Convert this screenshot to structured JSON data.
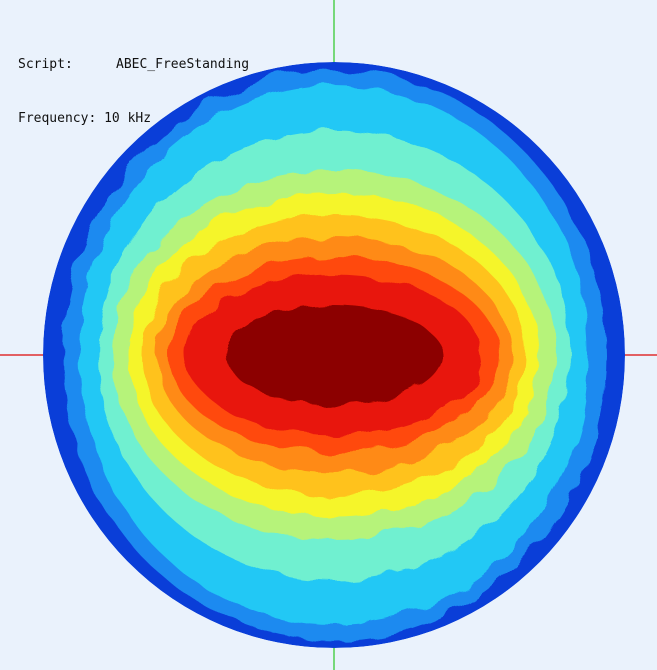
{
  "header": {
    "script_label": "Script:",
    "script_name": "ABEC_FreeStanding",
    "frequency_label": "Frequency:",
    "frequency_value": "10 kHz"
  }
}
